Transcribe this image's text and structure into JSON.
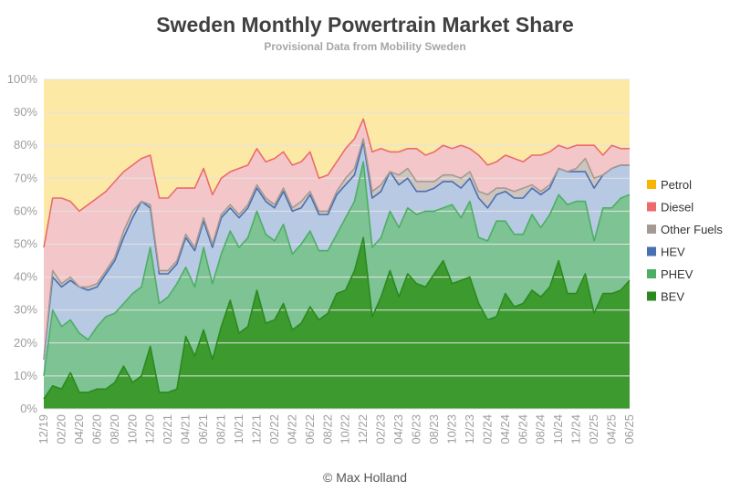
{
  "header": {
    "title": "Sweden Monthly Powertrain Market Share",
    "subtitle": "Provisional Data from Mobility Sweden"
  },
  "footer": {
    "credit": "© Max Holland"
  },
  "chart_data": {
    "type": "area",
    "stacked": true,
    "grid": true,
    "legend_position": "right",
    "x_tick_labels": [
      "12/19",
      "02/20",
      "04/20",
      "06/20",
      "08/20",
      "10/20",
      "12/20",
      "02/21",
      "04/21",
      "06/21",
      "08/21",
      "10/21",
      "12/21",
      "02/22",
      "04/22",
      "06/22",
      "08/22",
      "10/22",
      "12/22",
      "02/23",
      "04/23",
      "06/23",
      "08/23",
      "10/23",
      "12/23",
      "02/24",
      "04/24",
      "06/24",
      "08/24",
      "10/24",
      "12/24",
      "02/25",
      "04/25",
      "06/25"
    ],
    "y_tick_labels": [
      "0%",
      "10%",
      "20%",
      "30%",
      "40%",
      "50%",
      "60%",
      "70%",
      "80%",
      "90%",
      "100%"
    ],
    "ylim": [
      0,
      100
    ],
    "months": [
      "12/19",
      "01/20",
      "02/20",
      "03/20",
      "04/20",
      "05/20",
      "06/20",
      "07/20",
      "08/20",
      "09/20",
      "10/20",
      "11/20",
      "12/20",
      "01/21",
      "02/21",
      "03/21",
      "04/21",
      "05/21",
      "06/21",
      "07/21",
      "08/21",
      "09/21",
      "10/21",
      "11/21",
      "12/21",
      "01/22",
      "02/22",
      "03/22",
      "04/22",
      "05/22",
      "06/22",
      "07/22",
      "08/22",
      "09/22",
      "10/22",
      "11/22",
      "12/22",
      "01/23",
      "02/23",
      "03/23",
      "04/23",
      "05/23",
      "06/23",
      "07/23",
      "08/23",
      "09/23",
      "10/23",
      "11/23",
      "12/23",
      "01/24",
      "02/24",
      "03/24",
      "04/24",
      "05/24",
      "06/24",
      "07/24",
      "08/24",
      "09/24",
      "10/24",
      "11/24",
      "12/24",
      "01/25",
      "02/25",
      "03/25",
      "04/25",
      "05/25",
      "06/25"
    ],
    "series": [
      {
        "name": "BEV",
        "color": "#3d9a2e",
        "cumulative": [
          3,
          7,
          6,
          11,
          5,
          5,
          6,
          6,
          8,
          13,
          8,
          10,
          19,
          5,
          5,
          6,
          22,
          16,
          24,
          15,
          25,
          33,
          23,
          25,
          36,
          26,
          27,
          32,
          24,
          26,
          31,
          27,
          29,
          35,
          36,
          42,
          52,
          28,
          34,
          42,
          34,
          41,
          38,
          37,
          41,
          45,
          38,
          39,
          40,
          32,
          27,
          28,
          35,
          31,
          32,
          36,
          34,
          37,
          45,
          35,
          35,
          41,
          29,
          35,
          35,
          36,
          39
        ]
      },
      {
        "name": "PHEV",
        "color": "#7dc393",
        "cumulative": [
          10,
          30,
          25,
          27,
          23,
          21,
          25,
          28,
          29,
          32,
          35,
          37,
          49,
          32,
          34,
          38,
          43,
          37,
          49,
          38,
          47,
          54,
          49,
          52,
          60,
          53,
          51,
          56,
          47,
          50,
          54,
          48,
          48,
          53,
          58,
          63,
          75,
          49,
          52,
          60,
          55,
          61,
          59,
          60,
          60,
          61,
          62,
          58,
          63,
          52,
          51,
          57,
          57,
          53,
          53,
          59,
          55,
          59,
          65,
          62,
          63,
          63,
          51,
          61,
          61,
          64,
          65
        ]
      },
      {
        "name": "HEV",
        "color": "#b8c9e3",
        "cumulative": [
          15,
          40,
          37,
          39,
          37,
          36,
          37,
          41,
          45,
          52,
          58,
          63,
          61,
          41,
          41,
          44,
          52,
          48,
          57,
          49,
          58,
          61,
          58,
          61,
          67,
          63,
          61,
          66,
          60,
          61,
          65,
          59,
          59,
          65,
          68,
          71,
          81,
          64,
          66,
          72,
          68,
          70,
          66,
          66,
          67,
          69,
          69,
          67,
          70,
          64,
          61,
          65,
          66,
          64,
          64,
          67,
          65,
          67,
          73,
          72,
          72,
          72,
          67,
          71,
          73,
          74,
          74
        ]
      },
      {
        "name": "Other Fuels",
        "color": "#cfc5bf",
        "cumulative": [
          15,
          42,
          38,
          40,
          37,
          37,
          38,
          42,
          46,
          54,
          60,
          63,
          62,
          42,
          42,
          45,
          53,
          49,
          58,
          50,
          59,
          62,
          59,
          62,
          68,
          64,
          62,
          67,
          61,
          63,
          66,
          60,
          60,
          66,
          70,
          73,
          82,
          66,
          68,
          72,
          71,
          73,
          69,
          69,
          69,
          71,
          71,
          70,
          72,
          66,
          65,
          67,
          67,
          66,
          67,
          68,
          66,
          68,
          73,
          72,
          73,
          76,
          70,
          71,
          73,
          74,
          74
        ]
      },
      {
        "name": "Diesel",
        "color": "#f3c7c9",
        "cumulative": [
          49,
          64,
          64,
          63,
          60,
          62,
          64,
          66,
          69,
          72,
          74,
          76,
          77,
          64,
          64,
          67,
          67,
          67,
          73,
          65,
          70,
          72,
          73,
          74,
          79,
          75,
          76,
          78,
          74,
          75,
          78,
          70,
          71,
          75,
          79,
          82,
          88,
          78,
          79,
          78,
          78,
          79,
          79,
          77,
          78,
          80,
          79,
          80,
          79,
          77,
          74,
          75,
          77,
          76,
          75,
          77,
          77,
          78,
          80,
          79,
          80,
          80,
          80,
          77,
          80,
          79,
          79
        ]
      },
      {
        "name": "Petrol",
        "color": "#fde9a6",
        "cumulative": [
          100,
          100,
          100,
          100,
          100,
          100,
          100,
          100,
          100,
          100,
          100,
          100,
          100,
          100,
          100,
          100,
          100,
          100,
          100,
          100,
          100,
          100,
          100,
          100,
          100,
          100,
          100,
          100,
          100,
          100,
          100,
          100,
          100,
          100,
          100,
          100,
          100,
          100,
          100,
          100,
          100,
          100,
          100,
          100,
          100,
          100,
          100,
          100,
          100,
          100,
          100,
          100,
          100,
          100,
          100,
          100,
          100,
          100,
          100,
          100,
          100,
          100,
          100,
          100,
          100,
          100,
          100
        ]
      }
    ],
    "outline_colors": {
      "BEV": "#2a8a1e",
      "PHEV": "#4caf64",
      "HEV": "#4a6fb0",
      "Other Fuels": "#a59a93",
      "Diesel": "#ec6b6b",
      "Petrol": "#f7b500"
    },
    "legend": [
      {
        "label": "Petrol",
        "color": "#f7b500"
      },
      {
        "label": "Diesel",
        "color": "#ec6b6b"
      },
      {
        "label": "Other Fuels",
        "color": "#a59a93"
      },
      {
        "label": "HEV",
        "color": "#4a6fb0"
      },
      {
        "label": "PHEV",
        "color": "#4caf64"
      },
      {
        "label": "BEV",
        "color": "#2a8a1e"
      }
    ]
  }
}
